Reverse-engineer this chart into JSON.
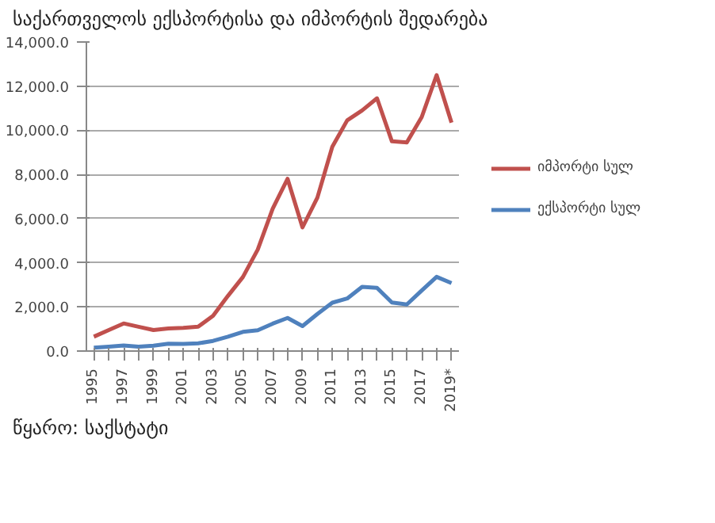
{
  "chart_data": {
    "type": "line",
    "title": "საქართველოს ექსპორტისა და იმპორტის შედარება",
    "annotations": [
      "წყარო: საქსტატი"
    ],
    "categories": [
      "1995",
      null,
      "1997",
      null,
      "1999",
      null,
      "2001",
      null,
      "2003",
      null,
      "2005",
      null,
      "2007",
      null,
      "2009",
      null,
      "2011",
      null,
      "2013",
      null,
      "2015",
      null,
      "2017",
      null,
      "2019*"
    ],
    "series": [
      {
        "name": "იმპორტი სულ",
        "color": "#c0504d",
        "values": [
          650,
          950,
          1250,
          1100,
          950,
          1020,
          1050,
          1100,
          1600,
          2500,
          3350,
          4600,
          6450,
          7800,
          5600,
          6950,
          9250,
          10450,
          10900,
          11450,
          9500,
          9450,
          10600,
          12500,
          10350
        ]
      },
      {
        "name": "ექსპორტი სულ",
        "color": "#4f81bd",
        "values": [
          150,
          200,
          250,
          200,
          240,
          330,
          320,
          350,
          460,
          650,
          870,
          940,
          1240,
          1500,
          1130,
          1680,
          2190,
          2380,
          2910,
          2860,
          2200,
          2110,
          2740,
          3360,
          3080
        ]
      }
    ],
    "ylim": [
      0,
      14000
    ],
    "yticks": [
      {
        "value": 0,
        "label": "0.0"
      },
      {
        "value": 2000,
        "label": "2,000.0"
      },
      {
        "value": 4000,
        "label": "4,000.0"
      },
      {
        "value": 6000,
        "label": "6,000.0"
      },
      {
        "value": 8000,
        "label": "8,000.0"
      },
      {
        "value": 10000,
        "label": "10,000.0"
      },
      {
        "value": 12000,
        "label": "12,000.0"
      },
      {
        "value": 14000,
        "label": "14,000.0"
      }
    ],
    "grid": "y",
    "legend": "right"
  }
}
